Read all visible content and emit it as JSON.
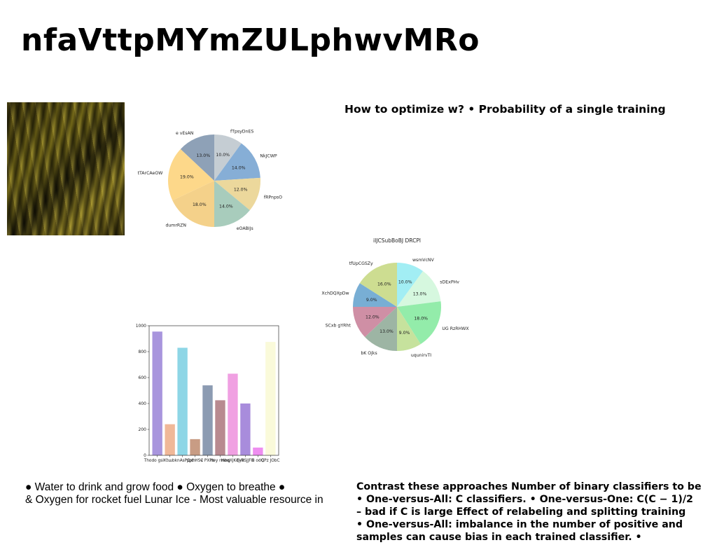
{
  "title": "nfaVttpMYmZULphwvMRo",
  "heading_right": "How to optimize w? • Probability of a single training",
  "left_bullets": [
    "● Water to drink and grow food ● Oxygen to breathe ●",
    "& Oxygen for rocket fuel Lunar Ice - Most valuable resource in"
  ],
  "right_bullets": [
    "Contrast these approaches Number of binary classifiers to be",
    "• One-versus-All: C classifiers. • One-versus-One: C(C − 1)/2",
    "– bad if C is large Effect of relabeling and splitting training",
    "• One-versus-All: imbalance in the number of positive and",
    "samples can cause bias in each trained classifier. •"
  ],
  "photo": {
    "icon": "abstract-gold-silk-photo"
  },
  "chart_data": [
    {
      "type": "pie",
      "title": "",
      "labels": [
        "fTpsyDnES",
        "NkJCWP",
        "fRPnpsO",
        "eOABIJs",
        "dumrRZN",
        "tTArCAeOW",
        "e vEsAN"
      ],
      "values": [
        10.0,
        14.0,
        12.0,
        14.0,
        18.0,
        19.0,
        13.0
      ],
      "value_labels": [
        "10.0%",
        "14.0%",
        "12.0%",
        "14.0%",
        "18.0%",
        "19.0%",
        "13.0%"
      ],
      "colors": [
        "#c5cdd3",
        "#86aed6",
        "#ecd89c",
        "#a8ccbc",
        "#f4d18a",
        "#fdd88a",
        "#8ea1b7"
      ],
      "start_angle": 90,
      "direction": "clockwise"
    },
    {
      "type": "pie",
      "title": "iIJCSubBoBJ  DRCPl",
      "labels": [
        "wsmVcNV",
        "sDExPHv",
        "UG RzRHWX",
        "uqunirvTI",
        "bK Ojks",
        "SCxb gYRht",
        "XchDQXpDw",
        "tfUpCGSZy"
      ],
      "values": [
        10.0,
        13.0,
        18.0,
        9.0,
        13.0,
        12.0,
        9.0,
        16.0
      ],
      "value_labels": [
        "10.0%",
        "13.0%",
        "18.0%",
        "9.0%",
        "13.0%",
        "12.0%",
        "9.0%",
        "16.0%"
      ],
      "colors": [
        "#a2eef4",
        "#d6f8df",
        "#93ecaa",
        "#c6e29d",
        "#9db5a4",
        "#cf8fa5",
        "#78aed4",
        "#cddd91"
      ],
      "start_angle": 90,
      "direction": "clockwise"
    },
    {
      "type": "bar",
      "title": "",
      "categories": [
        "Thodo gsiKtu",
        "",
        "ubknAsPQxh",
        "ppt HSC",
        "v PXPb",
        "ney rmnq",
        "HbqXJKqVB",
        "EyeSJJFH",
        "B odQ",
        "CPz JObC"
      ],
      "values": [
        955,
        240,
        830,
        125,
        540,
        425,
        630,
        400,
        60,
        875
      ],
      "colors": [
        "#a895dd",
        "#f0b898",
        "#8ed6e6",
        "#c89c84",
        "#8c9bb2",
        "#b88a90",
        "#f0a0e2",
        "#a88cdc",
        "#ee8ef0",
        "#fafada"
      ],
      "ylim": [
        0,
        1000
      ],
      "yticks": [
        "0",
        "200",
        "400",
        "600",
        "800",
        "1000"
      ]
    }
  ]
}
